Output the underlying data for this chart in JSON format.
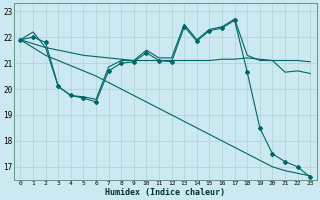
{
  "xlabel": "Humidex (Indice chaleur)",
  "background_color": "#cce8f0",
  "grid_color": "#b0d4cc",
  "line_color": "#006666",
  "xlim": [
    -0.5,
    23.5
  ],
  "ylim": [
    16.5,
    23.3
  ],
  "yticks": [
    17,
    18,
    19,
    20,
    21,
    22,
    23
  ],
  "xticks": [
    0,
    1,
    2,
    3,
    4,
    5,
    6,
    7,
    8,
    9,
    10,
    11,
    12,
    13,
    14,
    15,
    16,
    17,
    18,
    19,
    20,
    21,
    22,
    23
  ],
  "line1_x": [
    0,
    1,
    2,
    3,
    4,
    5,
    6,
    7,
    8,
    9,
    10,
    11,
    12,
    13,
    14,
    15,
    16,
    17,
    18,
    19,
    20,
    21,
    22,
    23
  ],
  "line1_y": [
    21.9,
    22.2,
    21.6,
    20.1,
    19.75,
    19.7,
    19.6,
    20.85,
    21.1,
    21.1,
    21.5,
    21.2,
    21.2,
    22.5,
    21.9,
    22.3,
    22.4,
    22.7,
    21.3,
    21.1,
    21.1,
    20.65,
    20.7,
    20.6
  ],
  "line2_x": [
    0,
    1,
    2,
    3,
    4,
    5,
    6,
    7,
    8,
    9,
    10,
    11,
    12,
    13,
    14,
    15,
    16,
    17,
    18,
    19,
    20,
    21,
    22,
    23
  ],
  "line2_y": [
    21.9,
    21.75,
    21.6,
    21.5,
    21.4,
    21.3,
    21.25,
    21.2,
    21.15,
    21.1,
    21.1,
    21.1,
    21.1,
    21.1,
    21.1,
    21.1,
    21.15,
    21.15,
    21.2,
    21.15,
    21.1,
    21.1,
    21.1,
    21.05
  ],
  "line3_x": [
    0,
    1,
    2,
    3,
    4,
    5,
    6,
    7,
    8,
    9,
    10,
    11,
    12,
    13,
    14,
    15,
    16,
    17,
    18,
    19,
    20,
    21,
    22,
    23
  ],
  "line3_y": [
    21.9,
    21.6,
    21.3,
    21.1,
    20.9,
    20.7,
    20.5,
    20.25,
    20.0,
    19.75,
    19.5,
    19.25,
    19.0,
    18.75,
    18.5,
    18.25,
    18.0,
    17.75,
    17.5,
    17.25,
    17.0,
    16.85,
    16.75,
    16.65
  ],
  "line4_x": [
    0,
    1,
    2,
    3,
    4,
    5,
    6,
    7,
    8,
    9,
    10,
    11,
    12,
    13,
    14,
    15,
    16,
    17,
    18,
    19,
    20,
    21,
    22,
    23
  ],
  "line4_y": [
    21.9,
    22.0,
    21.8,
    20.1,
    19.75,
    19.65,
    19.5,
    20.7,
    21.0,
    21.05,
    21.4,
    21.1,
    21.05,
    22.4,
    21.85,
    22.25,
    22.35,
    22.65,
    20.65,
    18.5,
    17.5,
    17.2,
    17.0,
    16.6
  ]
}
